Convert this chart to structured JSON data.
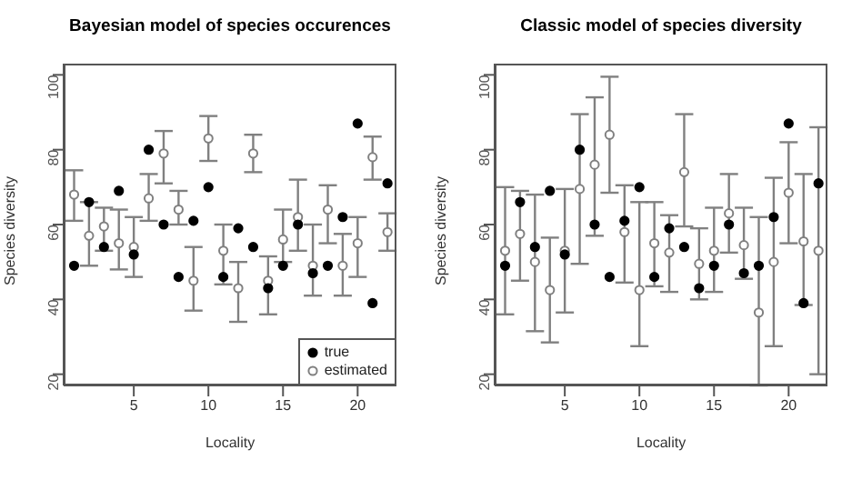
{
  "chart_data": [
    {
      "type": "scatter",
      "title": "Bayesian model of species occurences",
      "xlabel": "Locality",
      "ylabel": "Species diversity",
      "x": [
        1,
        2,
        3,
        4,
        5,
        6,
        7,
        8,
        9,
        10,
        11,
        12,
        13,
        14,
        15,
        16,
        17,
        18,
        19,
        20,
        21,
        22
      ],
      "xlim": [
        0.3,
        22.6
      ],
      "xticks": [
        5,
        10,
        15,
        20
      ],
      "ylim": [
        17,
        103
      ],
      "yticks": [
        20,
        40,
        60,
        80,
        100
      ],
      "legend": "bottom right",
      "marker": "circle",
      "series": [
        {
          "name": "true",
          "color": "#000000",
          "values": [
            49,
            66,
            54,
            69,
            52,
            80,
            60,
            46,
            61,
            70,
            46,
            59,
            54,
            43,
            49,
            60,
            47,
            49,
            62,
            87,
            39,
            71
          ]
        },
        {
          "name": "estimated",
          "color": "#808080",
          "values": [
            68,
            57,
            59.5,
            55,
            54,
            67,
            79,
            64,
            45,
            83,
            53,
            43,
            79,
            45,
            56,
            62,
            49,
            64,
            49,
            55,
            78,
            58
          ],
          "errors": [
            [
              61,
              74.5
            ],
            [
              49,
              66
            ],
            [
              53,
              64.5
            ],
            [
              48,
              64
            ],
            [
              46,
              62
            ],
            [
              61,
              73.5
            ],
            [
              71,
              85
            ],
            [
              60,
              69
            ],
            [
              37,
              54
            ],
            [
              77,
              89
            ],
            [
              44,
              60
            ],
            [
              34,
              50
            ],
            [
              74,
              84
            ],
            [
              36,
              51.5
            ],
            [
              50,
              64
            ],
            [
              53,
              72
            ],
            [
              41,
              60
            ],
            [
              55,
              70.5
            ],
            [
              41,
              57.5
            ],
            [
              46,
              62
            ],
            [
              72,
              83.5
            ],
            [
              53,
              63
            ]
          ]
        }
      ]
    },
    {
      "type": "scatter",
      "title": "Classic model of species diversity",
      "xlabel": "Locality",
      "ylabel": "Species diversity",
      "x": [
        1,
        2,
        3,
        4,
        5,
        6,
        7,
        8,
        9,
        10,
        11,
        12,
        13,
        14,
        15,
        16,
        17,
        18,
        19,
        20,
        21,
        22
      ],
      "xlim": [
        0.3,
        22.6
      ],
      "xticks": [
        5,
        10,
        15,
        20
      ],
      "ylim": [
        17,
        103
      ],
      "yticks": [
        20,
        40,
        60,
        80,
        100
      ],
      "marker": "circle",
      "series": [
        {
          "color": "#000000",
          "values": [
            49,
            66,
            54,
            69,
            52,
            80,
            60,
            46,
            61,
            70,
            46,
            59,
            54,
            43,
            49,
            60,
            47,
            49,
            62,
            87,
            39,
            71
          ]
        },
        {
          "color": "#808080",
          "values": [
            53,
            57.5,
            50,
            42.5,
            53,
            69.5,
            76,
            84,
            58,
            42.5,
            55,
            52.5,
            74,
            49.5,
            53,
            63,
            54.5,
            36.5,
            50,
            68.5,
            55.5,
            53
          ],
          "errors": [
            [
              36,
              70
            ],
            [
              45,
              69
            ],
            [
              31.5,
              68
            ],
            [
              28.5,
              56.5
            ],
            [
              36.5,
              69.5
            ],
            [
              49.5,
              89.5
            ],
            [
              57,
              94
            ],
            [
              68.5,
              99.5
            ],
            [
              44.5,
              70.5
            ],
            [
              27.5,
              66
            ],
            [
              43.5,
              66
            ],
            [
              42,
              62.5
            ],
            [
              59.5,
              89.5
            ],
            [
              40,
              59
            ],
            [
              42,
              64.5
            ],
            [
              52.5,
              73.5
            ],
            [
              45.5,
              64.5
            ],
            [
              17,
              62
            ],
            [
              27.5,
              72.5
            ],
            [
              55,
              82
            ],
            [
              38.5,
              73.5
            ],
            [
              20,
              86
            ]
          ]
        }
      ]
    }
  ]
}
